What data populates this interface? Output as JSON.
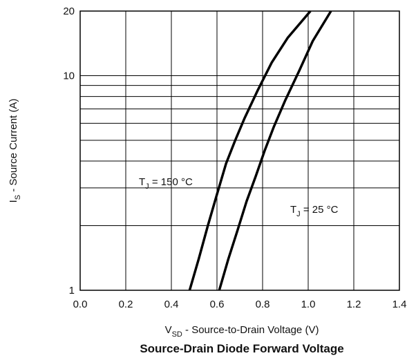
{
  "chart_data": {
    "type": "line",
    "title": "Source-Drain Diode Forward Voltage",
    "xlabel": {
      "main": "V",
      "sub": "SD",
      "rest": " - Source-to-Drain Voltage (V)"
    },
    "ylabel": {
      "main": "I",
      "sub": "S",
      "rest": " - Source Current (A)"
    },
    "xlim": [
      0.0,
      1.4
    ],
    "ylim": [
      1,
      20
    ],
    "yscale": "log",
    "grid": true,
    "x_ticks": [
      "0.0",
      "0.2",
      "0.4",
      "0.6",
      "0.8",
      "1.0",
      "1.2",
      "1.4"
    ],
    "y_ticks": [
      {
        "value": 1,
        "label": "1"
      },
      {
        "value": 10,
        "label": "10"
      },
      {
        "value": 20,
        "label": "20"
      }
    ],
    "series": [
      {
        "name": "TJ = 150 °C",
        "label": {
          "main": "T",
          "sub": "J",
          "rest": " = 150 °C"
        },
        "x": [
          0.48,
          0.52,
          0.56,
          0.6,
          0.64,
          0.68,
          0.72,
          0.78,
          0.84,
          0.91,
          1.01
        ],
        "y": [
          1,
          1.4,
          2,
          2.8,
          3.9,
          5,
          6.3,
          8.6,
          11.5,
          15,
          20
        ]
      },
      {
        "name": "TJ = 25 °C",
        "label": {
          "main": "T",
          "sub": "J",
          "rest": " = 25 °C"
        },
        "x": [
          0.61,
          0.65,
          0.69,
          0.73,
          0.77,
          0.81,
          0.85,
          0.9,
          0.96,
          1.02,
          1.1
        ],
        "y": [
          1,
          1.4,
          1.9,
          2.6,
          3.4,
          4.5,
          5.8,
          7.7,
          10.5,
          14.5,
          20
        ]
      }
    ]
  }
}
